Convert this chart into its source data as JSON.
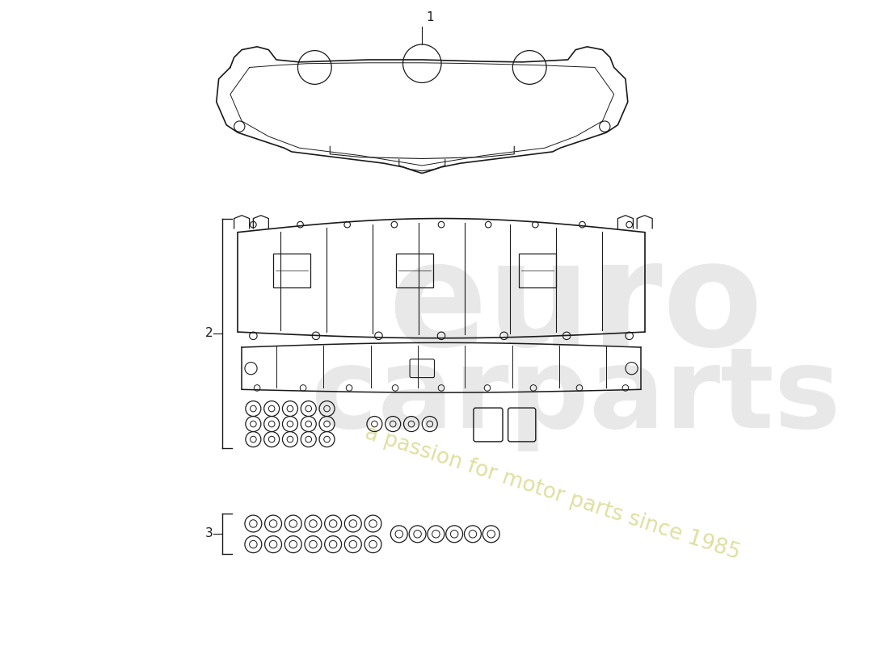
{
  "bg_color": "#ffffff",
  "line_color": "#1a1a1a",
  "part1_label": "1",
  "part2_label": "2",
  "part3_label": "3",
  "figsize": [
    11.0,
    8.0
  ],
  "dpi": 100
}
